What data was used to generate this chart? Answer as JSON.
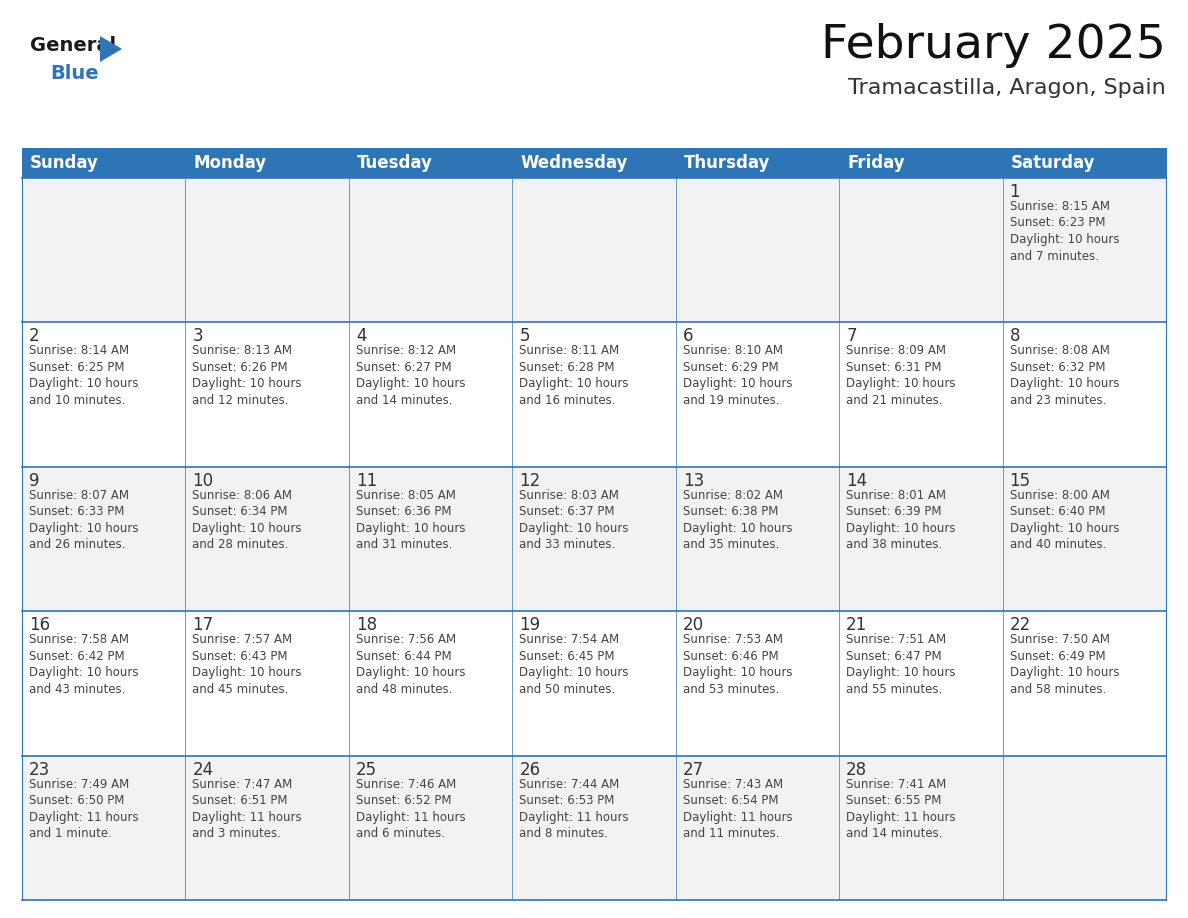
{
  "title": "February 2025",
  "subtitle": "Tramacastilla, Aragon, Spain",
  "header_bg": "#2E75B6",
  "header_text_color": "#FFFFFF",
  "cell_border_color": "#2E75B6",
  "day_number_color": "#333333",
  "info_text_color": "#444444",
  "background_color": "#FFFFFF",
  "row_bg_odd": "#F2F2F2",
  "row_bg_even": "#FFFFFF",
  "days_of_week": [
    "Sunday",
    "Monday",
    "Tuesday",
    "Wednesday",
    "Thursday",
    "Friday",
    "Saturday"
  ],
  "weeks": [
    [
      {
        "day": "",
        "info": ""
      },
      {
        "day": "",
        "info": ""
      },
      {
        "day": "",
        "info": ""
      },
      {
        "day": "",
        "info": ""
      },
      {
        "day": "",
        "info": ""
      },
      {
        "day": "",
        "info": ""
      },
      {
        "day": "1",
        "info": "Sunrise: 8:15 AM\nSunset: 6:23 PM\nDaylight: 10 hours\nand 7 minutes."
      }
    ],
    [
      {
        "day": "2",
        "info": "Sunrise: 8:14 AM\nSunset: 6:25 PM\nDaylight: 10 hours\nand 10 minutes."
      },
      {
        "day": "3",
        "info": "Sunrise: 8:13 AM\nSunset: 6:26 PM\nDaylight: 10 hours\nand 12 minutes."
      },
      {
        "day": "4",
        "info": "Sunrise: 8:12 AM\nSunset: 6:27 PM\nDaylight: 10 hours\nand 14 minutes."
      },
      {
        "day": "5",
        "info": "Sunrise: 8:11 AM\nSunset: 6:28 PM\nDaylight: 10 hours\nand 16 minutes."
      },
      {
        "day": "6",
        "info": "Sunrise: 8:10 AM\nSunset: 6:29 PM\nDaylight: 10 hours\nand 19 minutes."
      },
      {
        "day": "7",
        "info": "Sunrise: 8:09 AM\nSunset: 6:31 PM\nDaylight: 10 hours\nand 21 minutes."
      },
      {
        "day": "8",
        "info": "Sunrise: 8:08 AM\nSunset: 6:32 PM\nDaylight: 10 hours\nand 23 minutes."
      }
    ],
    [
      {
        "day": "9",
        "info": "Sunrise: 8:07 AM\nSunset: 6:33 PM\nDaylight: 10 hours\nand 26 minutes."
      },
      {
        "day": "10",
        "info": "Sunrise: 8:06 AM\nSunset: 6:34 PM\nDaylight: 10 hours\nand 28 minutes."
      },
      {
        "day": "11",
        "info": "Sunrise: 8:05 AM\nSunset: 6:36 PM\nDaylight: 10 hours\nand 31 minutes."
      },
      {
        "day": "12",
        "info": "Sunrise: 8:03 AM\nSunset: 6:37 PM\nDaylight: 10 hours\nand 33 minutes."
      },
      {
        "day": "13",
        "info": "Sunrise: 8:02 AM\nSunset: 6:38 PM\nDaylight: 10 hours\nand 35 minutes."
      },
      {
        "day": "14",
        "info": "Sunrise: 8:01 AM\nSunset: 6:39 PM\nDaylight: 10 hours\nand 38 minutes."
      },
      {
        "day": "15",
        "info": "Sunrise: 8:00 AM\nSunset: 6:40 PM\nDaylight: 10 hours\nand 40 minutes."
      }
    ],
    [
      {
        "day": "16",
        "info": "Sunrise: 7:58 AM\nSunset: 6:42 PM\nDaylight: 10 hours\nand 43 minutes."
      },
      {
        "day": "17",
        "info": "Sunrise: 7:57 AM\nSunset: 6:43 PM\nDaylight: 10 hours\nand 45 minutes."
      },
      {
        "day": "18",
        "info": "Sunrise: 7:56 AM\nSunset: 6:44 PM\nDaylight: 10 hours\nand 48 minutes."
      },
      {
        "day": "19",
        "info": "Sunrise: 7:54 AM\nSunset: 6:45 PM\nDaylight: 10 hours\nand 50 minutes."
      },
      {
        "day": "20",
        "info": "Sunrise: 7:53 AM\nSunset: 6:46 PM\nDaylight: 10 hours\nand 53 minutes."
      },
      {
        "day": "21",
        "info": "Sunrise: 7:51 AM\nSunset: 6:47 PM\nDaylight: 10 hours\nand 55 minutes."
      },
      {
        "day": "22",
        "info": "Sunrise: 7:50 AM\nSunset: 6:49 PM\nDaylight: 10 hours\nand 58 minutes."
      }
    ],
    [
      {
        "day": "23",
        "info": "Sunrise: 7:49 AM\nSunset: 6:50 PM\nDaylight: 11 hours\nand 1 minute."
      },
      {
        "day": "24",
        "info": "Sunrise: 7:47 AM\nSunset: 6:51 PM\nDaylight: 11 hours\nand 3 minutes."
      },
      {
        "day": "25",
        "info": "Sunrise: 7:46 AM\nSunset: 6:52 PM\nDaylight: 11 hours\nand 6 minutes."
      },
      {
        "day": "26",
        "info": "Sunrise: 7:44 AM\nSunset: 6:53 PM\nDaylight: 11 hours\nand 8 minutes."
      },
      {
        "day": "27",
        "info": "Sunrise: 7:43 AM\nSunset: 6:54 PM\nDaylight: 11 hours\nand 11 minutes."
      },
      {
        "day": "28",
        "info": "Sunrise: 7:41 AM\nSunset: 6:55 PM\nDaylight: 11 hours\nand 14 minutes."
      },
      {
        "day": "",
        "info": ""
      }
    ]
  ],
  "logo_general_color": "#1a1a1a",
  "logo_blue_color": "#2E75B6",
  "title_fontsize": 34,
  "subtitle_fontsize": 16,
  "header_fontsize": 12,
  "day_num_fontsize": 12,
  "info_fontsize": 8.5
}
